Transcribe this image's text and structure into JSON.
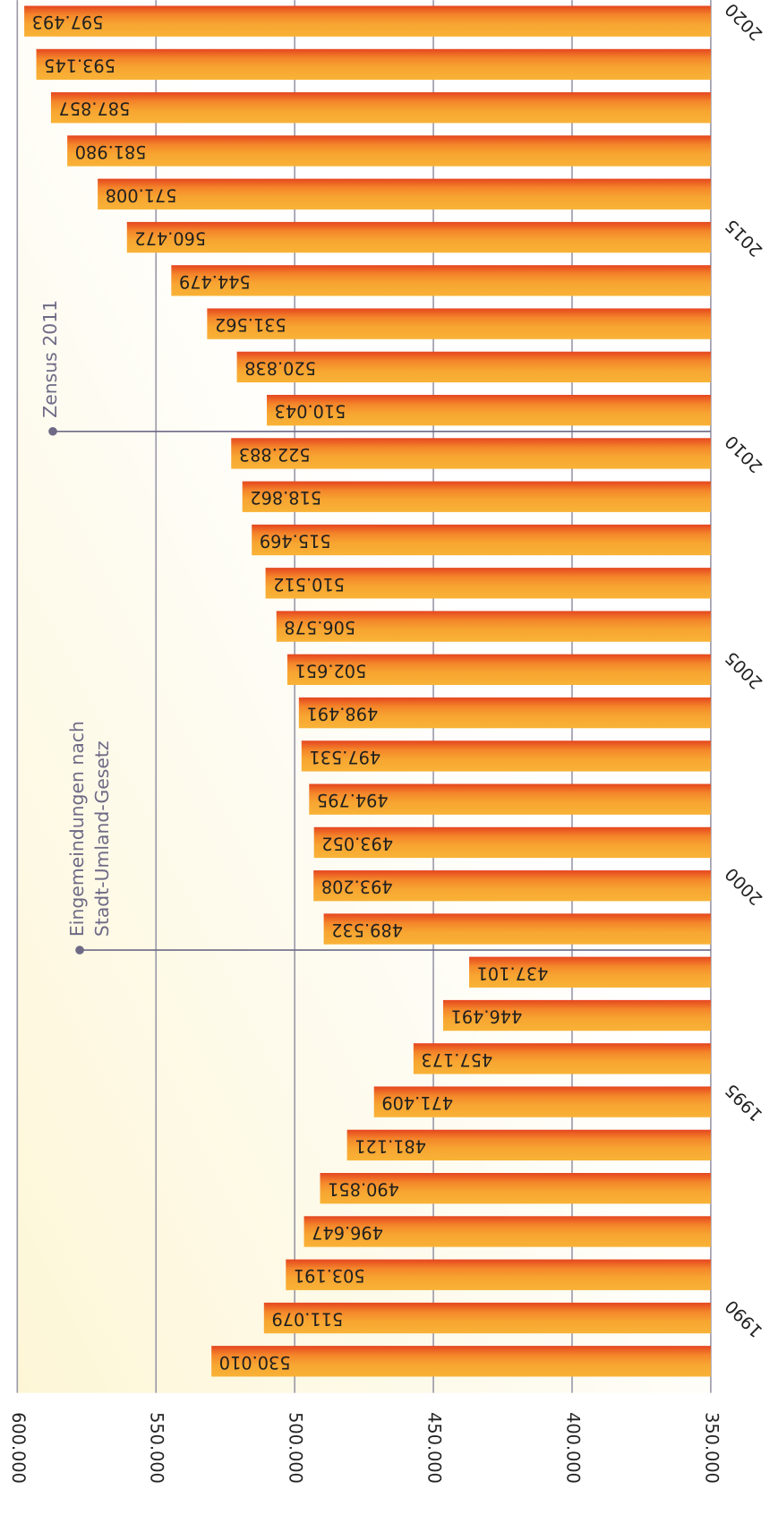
{
  "chart_data": {
    "type": "bar",
    "orientation": "horizontal",
    "categories": [
      null,
      "1990",
      null,
      null,
      null,
      null,
      "1995",
      null,
      null,
      null,
      null,
      "2000",
      null,
      null,
      null,
      null,
      "2005",
      null,
      null,
      null,
      null,
      "2010",
      null,
      null,
      null,
      null,
      "2015",
      null,
      null,
      null,
      null,
      "2020"
    ],
    "values": [
      530010,
      511079,
      503191,
      496647,
      490851,
      481121,
      471409,
      457173,
      446491,
      437101,
      489532,
      493208,
      493052,
      494795,
      497531,
      498491,
      502651,
      506578,
      510512,
      515469,
      518862,
      522883,
      510043,
      520838,
      531562,
      544479,
      560472,
      571008,
      581980,
      587857,
      593145,
      597493
    ],
    "value_labels": [
      "530.010",
      "511.079",
      "503.191",
      "496.647",
      "490.851",
      "481.121",
      "471.409",
      "457.173",
      "446.491",
      "437.101",
      "489.532",
      "493.208",
      "493.052",
      "494.795",
      "497.531",
      "498.491",
      "502.651",
      "506.578",
      "510.512",
      "515.469",
      "518.862",
      "522.883",
      "510.043",
      "520.838",
      "531.562",
      "544.479",
      "560.472",
      "571.008",
      "581.980",
      "587.857",
      "593.145",
      "597.493"
    ],
    "color": "#f7a531",
    "ylim": [
      350000,
      600000
    ],
    "yticks": [
      {
        "value": 350000,
        "label": "350.000"
      },
      {
        "value": 400000,
        "label": "400.000"
      },
      {
        "value": 450000,
        "label": "450.000"
      },
      {
        "value": 500000,
        "label": "500.000"
      },
      {
        "value": 550000,
        "label": "550.000"
      },
      {
        "value": 600000,
        "label": "600.000"
      }
    ],
    "grid": true,
    "annotations": [
      {
        "lines": [
          "Zensus 2011"
        ]
      },
      {
        "lines": [
          "Eingemeindungen nach",
          "Stadt-Umland-Gesetz"
        ]
      }
    ]
  }
}
